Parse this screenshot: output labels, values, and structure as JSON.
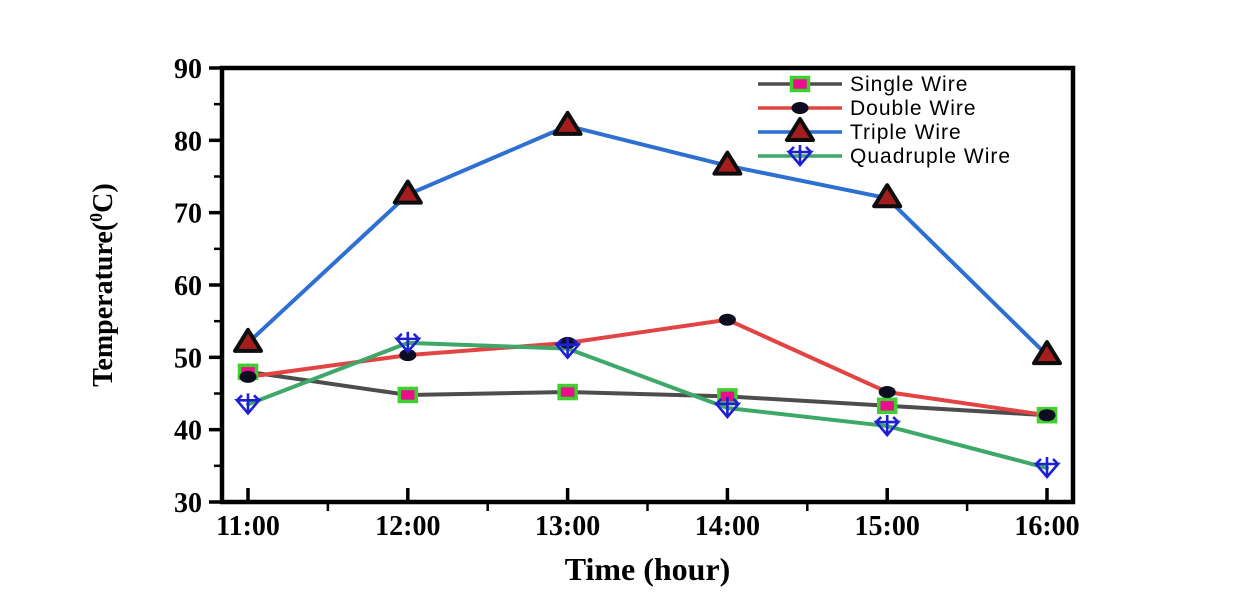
{
  "chart_data": {
    "type": "line",
    "title": "",
    "xlabel": "Time (hour)",
    "ylabel": "Temperature(0C)",
    "ylabel_parts": {
      "prefix": "Temperature(",
      "sup": "0",
      "suffix": "C)"
    },
    "categories": [
      "11:00",
      "12:00",
      "13:00",
      "14:00",
      "15:00",
      "16:00"
    ],
    "y_tick_labels": [
      "30",
      "40",
      "50",
      "60",
      "70",
      "80",
      "90"
    ],
    "y_ticks": [
      30,
      40,
      50,
      60,
      70,
      80,
      90
    ],
    "y_minor_ticks": [
      35,
      45,
      55,
      65,
      75,
      85
    ],
    "ylim": [
      30,
      90
    ],
    "grid": false,
    "legend_position": "top-right-inside",
    "frame_color": "#000000",
    "series": [
      {
        "name": "Single Wire",
        "values": [
          48,
          44.8,
          45.2,
          44.6,
          43.3,
          42
        ],
        "line_color": "#4d4d4d",
        "marker": "square-green-magenta",
        "marker_fill": "#ea0e8c",
        "marker_edge": "#3ed02f"
      },
      {
        "name": "Double Wire",
        "values": [
          47.3,
          50.3,
          52,
          55.2,
          45.2,
          42
        ],
        "line_color": "#e24444",
        "marker": "black-ellipse",
        "marker_fill": "#0d0d22",
        "marker_edge": "#0d0d22"
      },
      {
        "name": "Triple Wire",
        "values": [
          52,
          72.5,
          82,
          76.5,
          72,
          50.3
        ],
        "line_color": "#2e6fd2",
        "marker": "triangle-up-red-black",
        "marker_fill": "#a41e1e",
        "marker_edge": "#0d0d0d"
      },
      {
        "name": "Quadruple Wire",
        "values": [
          43.5,
          52,
          51.2,
          43,
          40.5,
          34.7
        ],
        "line_color": "#3da868",
        "marker": "tri-down-cross-blue",
        "marker_fill": "none",
        "marker_edge": "#1f1fd4"
      }
    ]
  }
}
